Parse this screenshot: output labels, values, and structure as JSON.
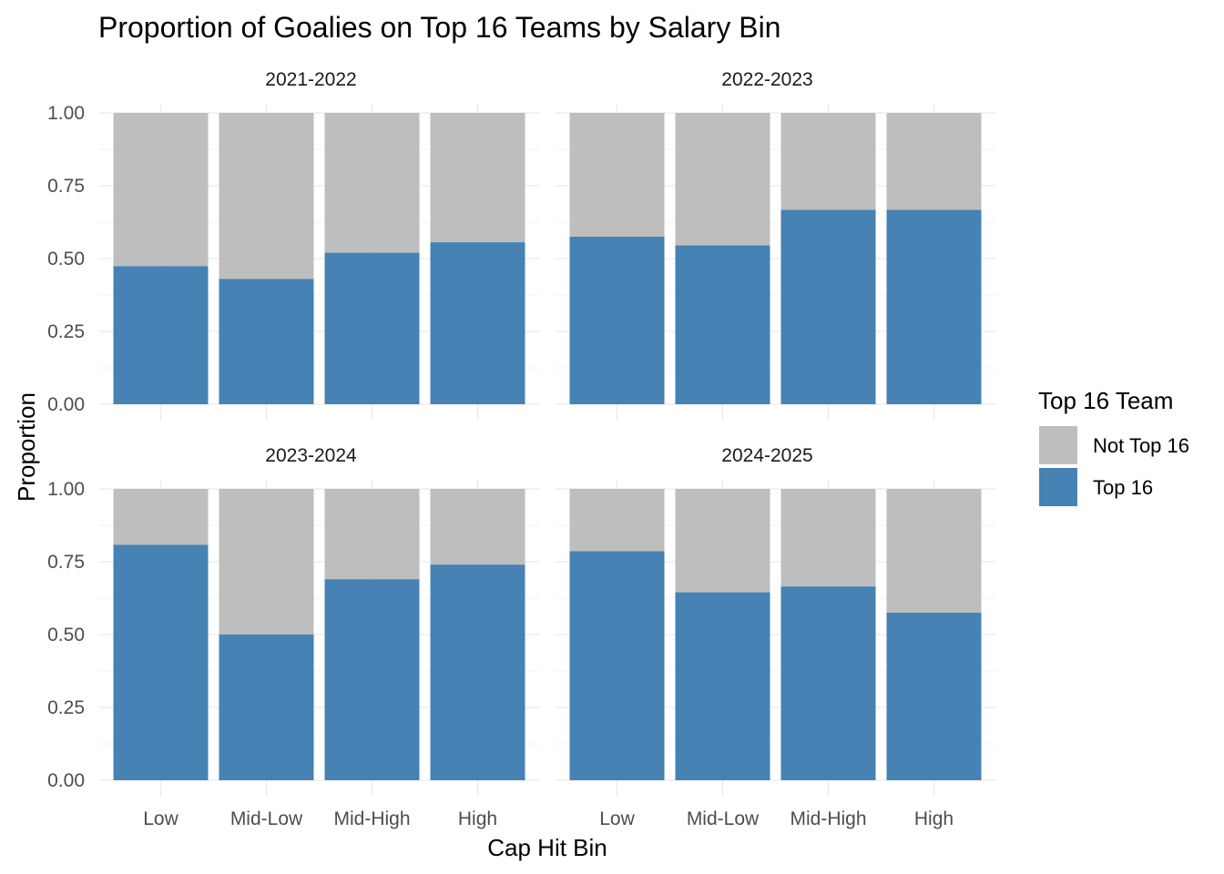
{
  "chart_data": {
    "type": "bar",
    "stacked": true,
    "title": "Proportion of Goalies on Top 16 Teams by Salary Bin",
    "xlabel": "Cap Hit Bin",
    "ylabel": "Proportion",
    "ylim": [
      0,
      1
    ],
    "yticks": [
      "0.00",
      "0.25",
      "0.50",
      "0.75",
      "1.00"
    ],
    "ytick_values": [
      0,
      0.25,
      0.5,
      0.75,
      1.0
    ],
    "grid": true,
    "legend": {
      "title": "Top 16 Team",
      "position": "right",
      "entries": [
        {
          "label": "Not Top 16",
          "color": "#bebebe"
        },
        {
          "label": "Top 16",
          "color": "#4682b4"
        }
      ]
    },
    "categories": [
      "Low",
      "Mid-Low",
      "Mid-High",
      "High"
    ],
    "panels": [
      {
        "title": "2021-2022",
        "series": [
          {
            "name": "Top 16",
            "values": [
              0.474,
              0.43,
              0.52,
              0.556
            ]
          },
          {
            "name": "Not Top 16",
            "values": [
              0.526,
              0.57,
              0.48,
              0.444
            ]
          }
        ]
      },
      {
        "title": "2022-2023",
        "series": [
          {
            "name": "Top 16",
            "values": [
              0.575,
              0.545,
              0.667,
              0.667
            ]
          },
          {
            "name": "Not Top 16",
            "values": [
              0.425,
              0.455,
              0.333,
              0.333
            ]
          }
        ]
      },
      {
        "title": "2023-2024",
        "series": [
          {
            "name": "Top 16",
            "values": [
              0.808,
              0.5,
              0.69,
              0.74
            ]
          },
          {
            "name": "Not Top 16",
            "values": [
              0.192,
              0.5,
              0.31,
              0.26
            ]
          }
        ]
      },
      {
        "title": "2024-2025",
        "series": [
          {
            "name": "Top 16",
            "values": [
              0.786,
              0.645,
              0.665,
              0.575
            ]
          },
          {
            "name": "Not Top 16",
            "values": [
              0.214,
              0.355,
              0.335,
              0.425
            ]
          }
        ]
      }
    ]
  }
}
